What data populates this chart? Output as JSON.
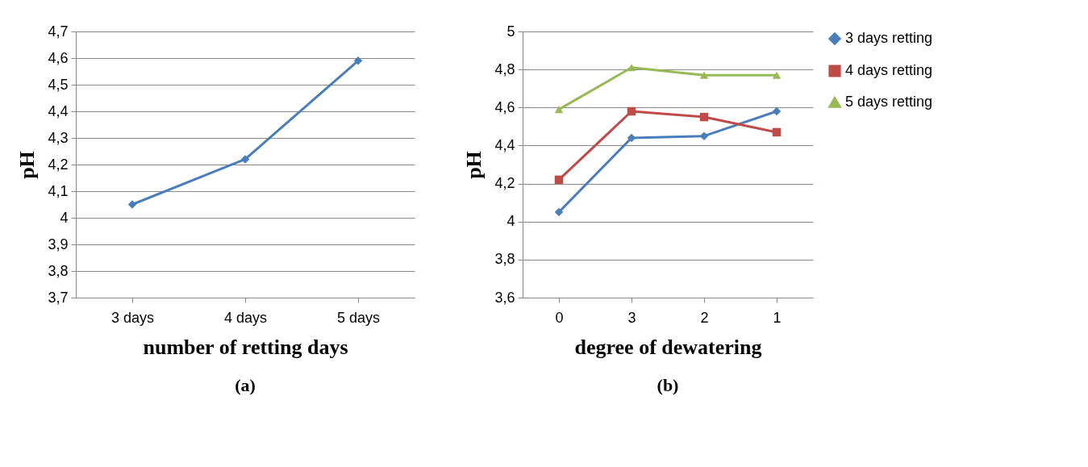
{
  "chart_data": [
    {
      "type": "line",
      "xlabel": "number of retting days",
      "ylabel": "pH",
      "categories": [
        "3 days",
        "4 days",
        "5 days"
      ],
      "series": [
        {
          "color": "#4a7ebb",
          "marker": "diamond",
          "values": [
            4.05,
            4.22,
            4.59
          ]
        }
      ],
      "ylim": [
        3.7,
        4.7
      ],
      "yticks": [
        {
          "value": 3.7,
          "label": "3,7"
        },
        {
          "value": 3.8,
          "label": "3,8"
        },
        {
          "value": 3.9,
          "label": "3,9"
        },
        {
          "value": 4,
          "label": "4"
        },
        {
          "value": 4.1,
          "label": "4,1"
        },
        {
          "value": 4.2,
          "label": "4,2"
        },
        {
          "value": 4.3,
          "label": "4,3"
        },
        {
          "value": 4.4,
          "label": "4,4"
        },
        {
          "value": 4.5,
          "label": "4,5"
        },
        {
          "value": 4.6,
          "label": "4,6"
        },
        {
          "value": 4.7,
          "label": "4,7"
        }
      ],
      "grid": "y",
      "legend": false,
      "annotations": [
        "(a)"
      ]
    },
    {
      "type": "line",
      "xlabel": "degree of dewatering",
      "ylabel": "pH",
      "categories": [
        "0",
        "3",
        "2",
        "1"
      ],
      "series": [
        {
          "name": "3 days retting",
          "color": "#4a7ebb",
          "marker": "diamond",
          "values": [
            4.05,
            4.44,
            4.45,
            4.58
          ]
        },
        {
          "name": "4 days retting",
          "color": "#be4b48",
          "marker": "square",
          "values": [
            4.22,
            4.58,
            4.55,
            4.47
          ]
        },
        {
          "name": "5 days retting",
          "color": "#98b954",
          "marker": "triangle",
          "values": [
            4.59,
            4.81,
            4.77,
            4.77
          ]
        }
      ],
      "ylim": [
        3.6,
        5
      ],
      "yticks": [
        {
          "value": 3.6,
          "label": "3,6"
        },
        {
          "value": 3.8,
          "label": "3,8"
        },
        {
          "value": 4,
          "label": "4"
        },
        {
          "value": 4.2,
          "label": "4,2"
        },
        {
          "value": 4.4,
          "label": "4,4"
        },
        {
          "value": 4.6,
          "label": "4,6"
        },
        {
          "value": 4.8,
          "label": "4,8"
        },
        {
          "value": 5,
          "label": "5"
        }
      ],
      "grid": "y",
      "legend": "right",
      "annotations": [
        "(b)"
      ]
    }
  ]
}
